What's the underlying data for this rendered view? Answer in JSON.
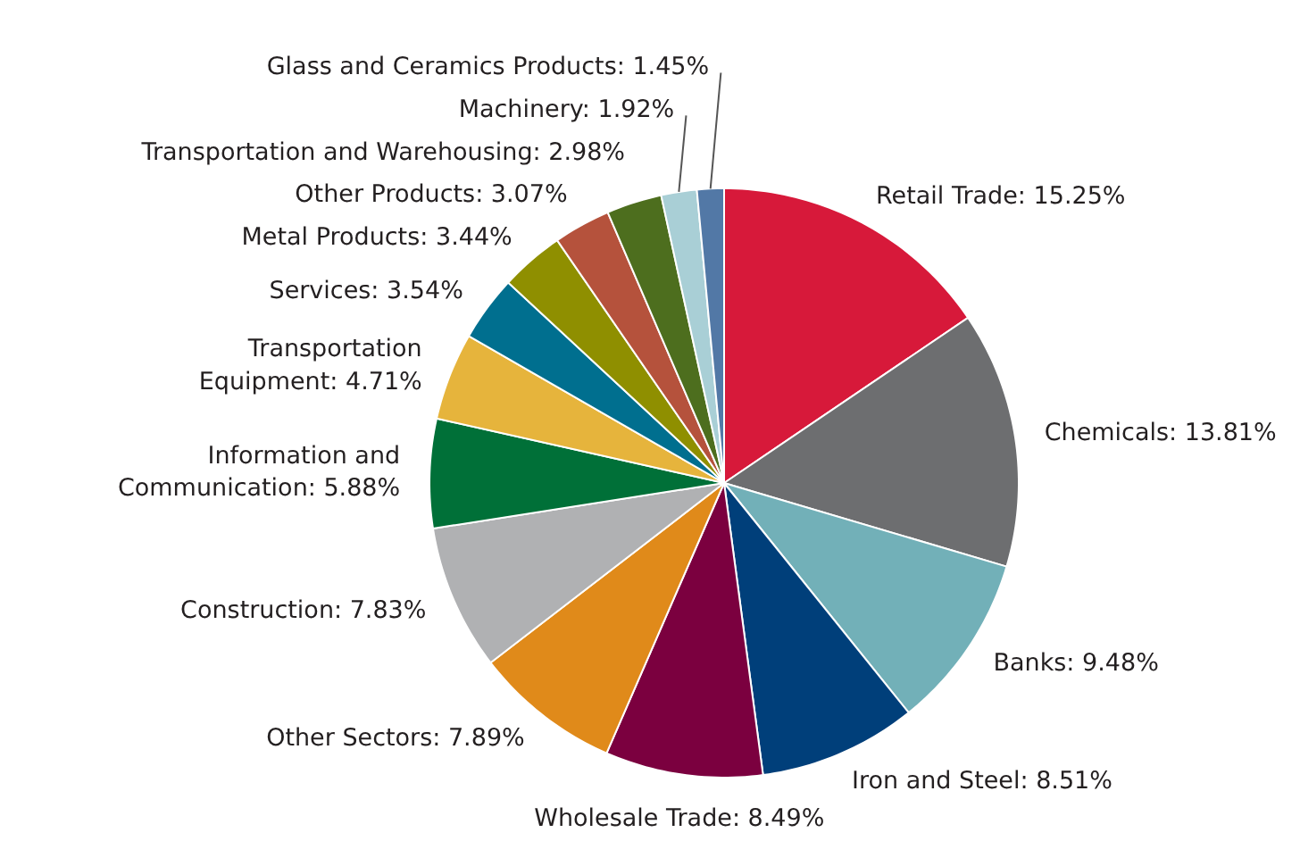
{
  "chart_data": {
    "type": "pie",
    "categories": [
      "Retail Trade",
      "Chemicals",
      "Banks",
      "Iron and Steel",
      "Wholesale Trade",
      "Other Sectors",
      "Construction",
      "Information and Communication",
      "Transportation Equipment",
      "Services",
      "Metal Products",
      "Other Products",
      "Transportation and Warehousing",
      "Machinery",
      "Glass and Ceramics Products"
    ],
    "values": [
      15.25,
      13.81,
      9.48,
      8.51,
      8.49,
      7.89,
      7.83,
      5.88,
      4.71,
      3.54,
      3.44,
      3.07,
      2.98,
      1.92,
      1.45
    ],
    "value_labels": [
      "15.25%",
      "13.81%",
      "9.48%",
      "8.51%",
      "8.49%",
      "7.89%",
      "7.83%",
      "5.88%",
      "4.71%",
      "3.54%",
      "3.44%",
      "3.07%",
      "2.98%",
      "1.92%",
      "1.45%"
    ],
    "colors": [
      "#d7193a",
      "#6d6e70",
      "#72b0b8",
      "#003f7a",
      "#7b003f",
      "#e08a1a",
      "#b0b1b3",
      "#007038",
      "#e6b43c",
      "#006f8f",
      "#8f8f00",
      "#b5523c",
      "#4d6e1e",
      "#a9cfd6",
      "#5278a6"
    ]
  }
}
